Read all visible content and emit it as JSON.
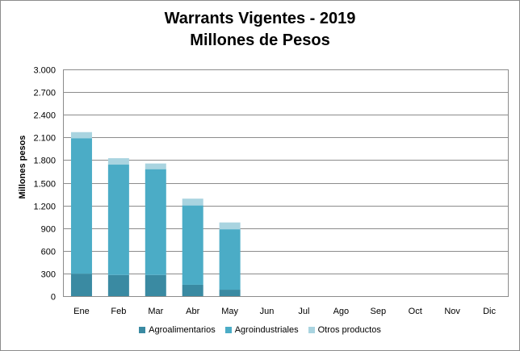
{
  "chart_data": {
    "type": "bar",
    "stacked": true,
    "title": "Warrants Vigentes - 2019",
    "subtitle": "Millones de Pesos",
    "ylabel": "Millones  pesos",
    "xlabel": "",
    "ylim": [
      0,
      3000
    ],
    "yticks": [
      0,
      300,
      600,
      900,
      1200,
      1500,
      1800,
      2100,
      2400,
      2700,
      3000
    ],
    "ytick_labels": [
      "0",
      "300",
      "600",
      "900",
      "1.200",
      "1.500",
      "1.800",
      "2.100",
      "2.400",
      "2.700",
      "3.000"
    ],
    "categories": [
      "Ene",
      "Feb",
      "Mar",
      "Abr",
      "May",
      "Jun",
      "Jul",
      "Ago",
      "Sep",
      "Oct",
      "Nov",
      "Dic"
    ],
    "series": [
      {
        "name": "Agroalimentarios",
        "color": "#3a8aa2",
        "values": [
          295,
          280,
          280,
          150,
          85,
          null,
          null,
          null,
          null,
          null,
          null,
          null
        ]
      },
      {
        "name": "Agroindustriales",
        "color": "#4bacc6",
        "values": [
          1795,
          1460,
          1400,
          1050,
          800,
          null,
          null,
          null,
          null,
          null,
          null,
          null
        ]
      },
      {
        "name": "Otros productos",
        "color": "#a9d4e0",
        "values": [
          80,
          85,
          75,
          90,
          90,
          null,
          null,
          null,
          null,
          null,
          null,
          null
        ]
      }
    ],
    "grid": true,
    "legend_position": "bottom"
  }
}
